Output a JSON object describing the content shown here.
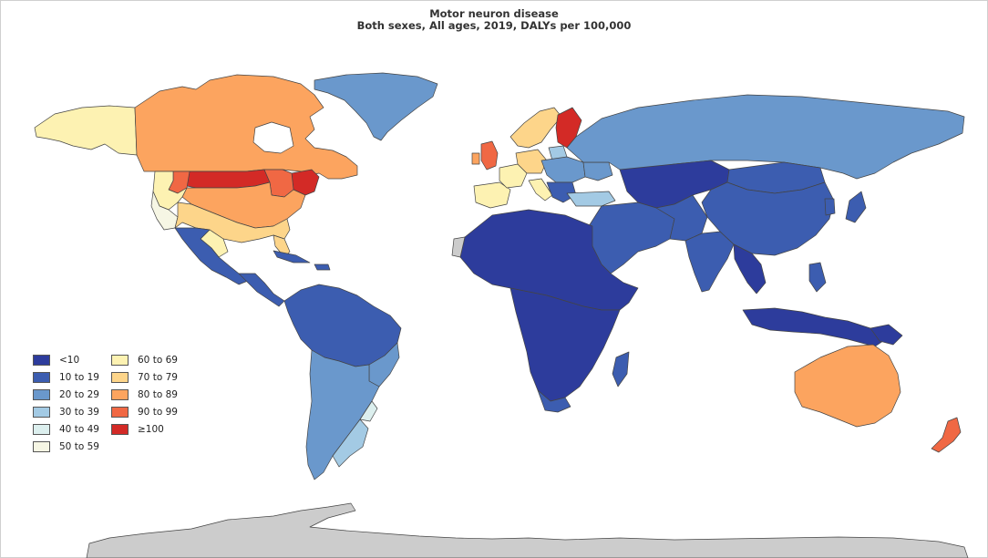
{
  "title": {
    "line1": "Motor neuron disease",
    "line2": "Both sexes, All ages, 2019, DALYs per 100,000"
  },
  "colors": {
    "ocean": "#ffffff",
    "no_data": "#cccccc",
    "border": "#444444"
  },
  "legend": {
    "items": [
      {
        "label": "<10",
        "color": "#2d3c9c"
      },
      {
        "label": "10 to 19",
        "color": "#3c5db0"
      },
      {
        "label": "20 to 29",
        "color": "#6a98cc"
      },
      {
        "label": "30 to 39",
        "color": "#a3cae4"
      },
      {
        "label": "40 to 49",
        "color": "#dcefee"
      },
      {
        "label": "50 to 59",
        "color": "#f6f6e4"
      },
      {
        "label": "60 to 69",
        "color": "#fdf2b2"
      },
      {
        "label": "70 to 79",
        "color": "#fdd58a"
      },
      {
        "label": "80 to 89",
        "color": "#fca45f"
      },
      {
        "label": "90 to 99",
        "color": "#f06844"
      },
      {
        "label": "≥100",
        "color": "#d32a26"
      }
    ]
  }
}
